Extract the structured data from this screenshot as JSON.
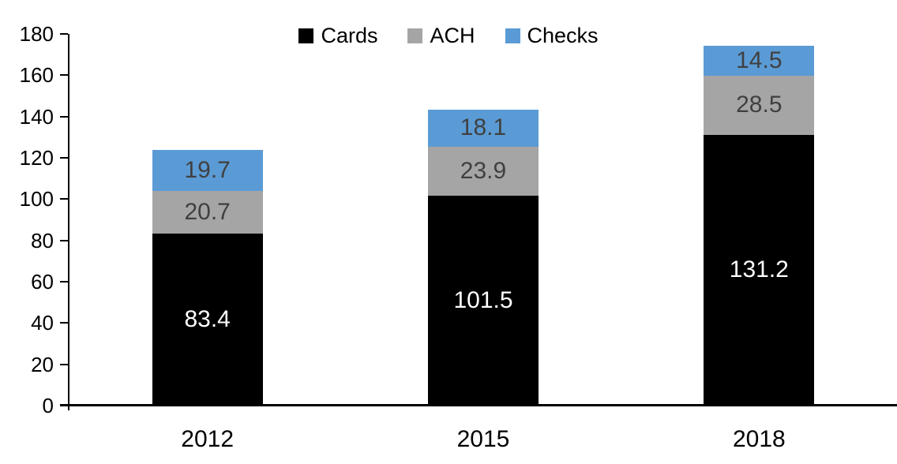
{
  "chart_data": {
    "type": "bar",
    "stacked": true,
    "title": "",
    "xlabel": "",
    "ylabel": "",
    "categories": [
      "2012",
      "2015",
      "2018"
    ],
    "series": [
      {
        "name": "Cards",
        "values": [
          83.4,
          101.5,
          131.2
        ],
        "color": "#000000",
        "label_color": "#FFFFFF"
      },
      {
        "name": "ACH",
        "values": [
          20.7,
          23.9,
          28.5
        ],
        "color": "#A5A5A5",
        "label_color": "#404040"
      },
      {
        "name": "Checks",
        "values": [
          19.7,
          18.1,
          14.5
        ],
        "color": "#5B9BD5",
        "label_color": "#404040"
      }
    ],
    "data_labels": true,
    "ylim": [
      0,
      180
    ],
    "ytick_step": 20,
    "ytick_labels": [
      "0",
      "20",
      "40",
      "60",
      "80",
      "100",
      "120",
      "140",
      "160",
      "180"
    ],
    "grid": false,
    "legend_position": "top-center",
    "axis_color": "#000000",
    "background": "#FFFFFF"
  }
}
